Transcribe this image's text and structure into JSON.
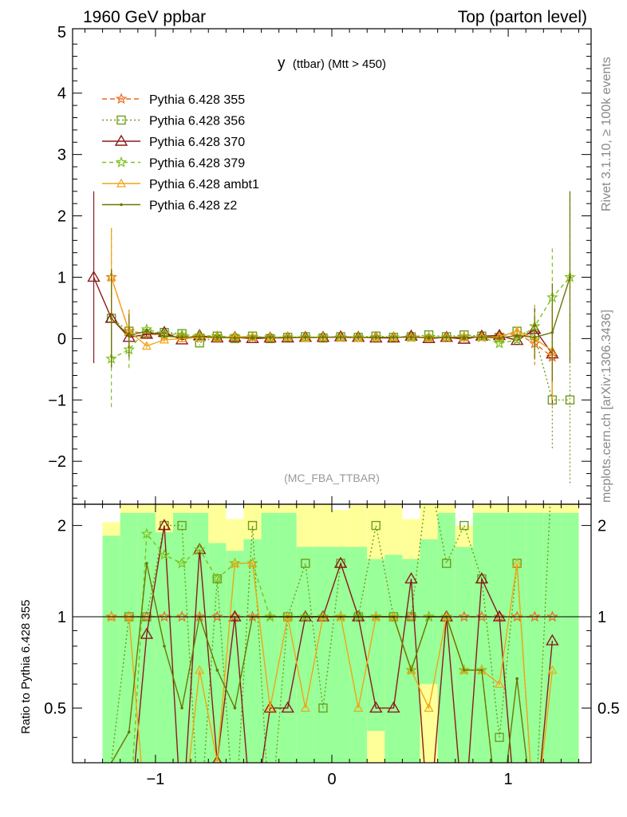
{
  "header": {
    "left": "1960 GeV ppbar",
    "right": "Top (parton level)"
  },
  "side_labels": {
    "rivet": "Rivet 3.1.10, ≥ 100k events",
    "mcplots": "mcplots.cern.ch [arXiv:1306.3436]"
  },
  "chart_data": {
    "type": "line",
    "title": "y (ttbar) (Mtt > 450)",
    "title_main": "y",
    "title_sub": "(ttbar) (Mtt > 450)",
    "analysis": "(MC_FBA_TTBAR)",
    "x": [
      -1.35,
      -1.25,
      -1.15,
      -1.05,
      -0.95,
      -0.85,
      -0.75,
      -0.65,
      -0.55,
      -0.45,
      -0.35,
      -0.25,
      -0.15,
      -0.05,
      0.05,
      0.15,
      0.25,
      0.35,
      0.45,
      0.55,
      0.65,
      0.75,
      0.85,
      0.95,
      1.05,
      1.15,
      1.25,
      1.35
    ],
    "xlim": [
      -1.47,
      1.47
    ],
    "xticks": [
      -1,
      0,
      1
    ],
    "xticklabels": [
      "−1",
      "0",
      "1"
    ],
    "top_panel": {
      "ylim": [
        -2.7,
        5.05
      ],
      "yticks": [
        -2,
        -1,
        0,
        1,
        2,
        3,
        4,
        5
      ],
      "yticklabels": [
        "−2",
        "−1",
        "0",
        "1",
        "2",
        "3",
        "4",
        "5"
      ]
    },
    "ratio_panel": {
      "ylabel": "Ratio to Pythia 6.428 355",
      "ylim": [
        0.33,
        2.35
      ],
      "yticks": [
        0.5,
        1,
        2
      ],
      "yticklabels": [
        "0.5",
        "1",
        "2"
      ],
      "reference": 1
    },
    "legend_position": "top-left",
    "series": [
      {
        "name": "Pythia 6.428 355",
        "color": "#ee6a1e",
        "dash": "6,4",
        "marker": "star",
        "values": [
          null,
          1.0,
          0.12,
          0.08,
          0.05,
          0.04,
          0.03,
          0.03,
          0.02,
          0.02,
          0.02,
          0.02,
          0.02,
          0.02,
          0.02,
          0.02,
          0.02,
          0.02,
          0.03,
          0.02,
          0.02,
          0.03,
          0.03,
          0.05,
          0.08,
          -0.08,
          -0.3,
          null
        ]
      },
      {
        "name": "Pythia 6.428 356",
        "color": "#6f9d1d",
        "dash": "2,3",
        "marker": "square",
        "values": [
          null,
          0.33,
          0.12,
          0.08,
          0.1,
          0.08,
          -0.07,
          0.04,
          0.0,
          0.04,
          0.0,
          0.02,
          0.03,
          0.01,
          0.03,
          0.02,
          0.04,
          0.02,
          0.03,
          0.06,
          0.03,
          0.06,
          0.04,
          0.02,
          0.12,
          0.05,
          -1.0,
          -1.0
        ]
      },
      {
        "name": "Pythia 6.428 370",
        "color": "#8b1a1a",
        "dash": "",
        "marker": "triangle",
        "values": [
          1.0,
          0.33,
          0.02,
          0.07,
          0.1,
          -0.02,
          0.05,
          0.01,
          0.02,
          0.0,
          0.01,
          0.01,
          0.02,
          0.02,
          0.03,
          0.02,
          0.01,
          0.01,
          0.04,
          0.0,
          0.02,
          -0.01,
          0.04,
          0.05,
          -0.03,
          0.15,
          -0.25,
          null
        ]
      },
      {
        "name": "Pythia 6.428 379",
        "color": "#7cc11c",
        "dash": "5,4",
        "marker": "star",
        "values": [
          null,
          -0.33,
          -0.18,
          0.15,
          0.08,
          0.06,
          0.05,
          0.04,
          0.03,
          0.03,
          0.02,
          0.02,
          0.02,
          0.02,
          0.02,
          0.02,
          0.02,
          0.02,
          0.02,
          0.02,
          0.02,
          0.02,
          0.02,
          -0.08,
          -0.02,
          0.2,
          0.67,
          1.0
        ]
      },
      {
        "name": "Pythia 6.428 ambt1",
        "color": "#f2a416",
        "dash": "",
        "marker": "triangle-small",
        "values": [
          null,
          1.0,
          0.12,
          -0.12,
          -0.02,
          0.0,
          0.02,
          0.01,
          0.03,
          0.03,
          0.01,
          0.02,
          0.01,
          0.02,
          0.02,
          0.01,
          0.02,
          0.02,
          0.02,
          0.01,
          0.02,
          0.02,
          0.02,
          0.03,
          0.12,
          0.0,
          -0.2,
          null
        ]
      },
      {
        "name": "Pythia 6.428 z2",
        "color": "#6e7500",
        "dash": "",
        "marker": "dot",
        "values": [
          null,
          0.33,
          0.05,
          0.12,
          0.04,
          0.02,
          0.03,
          0.02,
          0.01,
          0.02,
          0.02,
          0.02,
          0.02,
          0.02,
          0.02,
          0.02,
          0.02,
          0.02,
          0.02,
          0.02,
          0.02,
          0.02,
          0.02,
          0.01,
          0.05,
          0.02,
          0.1,
          1.0
        ]
      }
    ]
  }
}
